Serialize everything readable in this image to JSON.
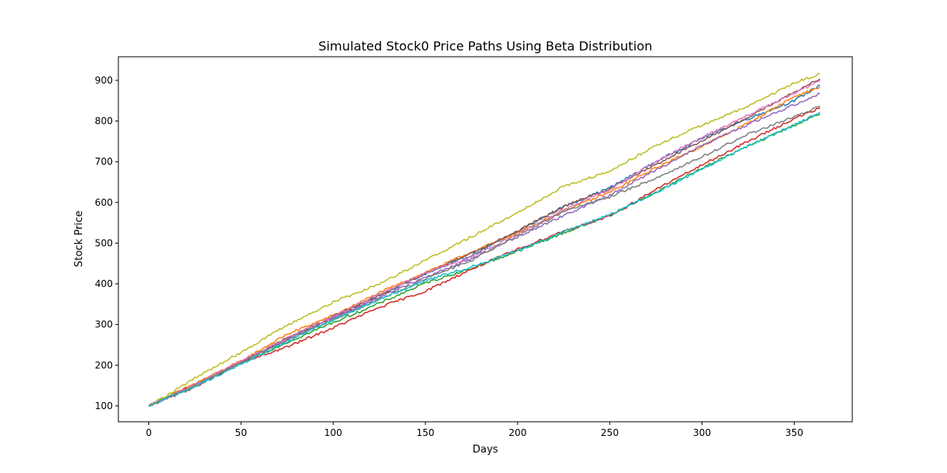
{
  "chart_data": {
    "type": "line",
    "title": "Simulated Stock0 Price Paths Using Beta Distribution",
    "xlabel": "Days",
    "ylabel": "Stock Price",
    "xlim": [
      -16.5,
      381.5
    ],
    "ylim": [
      61,
      958
    ],
    "grid": false,
    "legend": "none",
    "x_ticks": [
      0,
      50,
      100,
      150,
      200,
      250,
      300,
      350
    ],
    "y_ticks": [
      100,
      200,
      300,
      400,
      500,
      600,
      700,
      800,
      900
    ],
    "series": [
      {
        "color": "#1f77b4",
        "x": [
          0,
          25,
          50,
          75,
          100,
          125,
          150,
          175,
          200,
          225,
          250,
          275,
          300,
          325,
          350,
          364
        ],
        "y": [
          100,
          152,
          208,
          266,
          318,
          372,
          424,
          470,
          528,
          590,
          636,
          700,
          758,
          806,
          850,
          888
        ]
      },
      {
        "color": "#ff7f0e",
        "x": [
          0,
          25,
          50,
          75,
          100,
          125,
          150,
          175,
          200,
          225,
          250,
          275,
          300,
          325,
          350,
          364
        ],
        "y": [
          100,
          155,
          210,
          276,
          322,
          378,
          428,
          478,
          525,
          580,
          625,
          685,
          738,
          795,
          860,
          884
        ]
      },
      {
        "color": "#2ca02c",
        "x": [
          0,
          25,
          50,
          75,
          100,
          125,
          150,
          175,
          200,
          225,
          250,
          275,
          300,
          325,
          350,
          364
        ],
        "y": [
          100,
          150,
          205,
          256,
          305,
          352,
          402,
          438,
          480,
          525,
          568,
          625,
          685,
          738,
          790,
          817
        ]
      },
      {
        "color": "#d62728",
        "x": [
          0,
          25,
          50,
          75,
          100,
          125,
          150,
          175,
          200,
          225,
          250,
          275,
          300,
          325,
          350,
          364
        ],
        "y": [
          100,
          150,
          205,
          245,
          292,
          342,
          382,
          436,
          485,
          530,
          566,
          632,
          692,
          750,
          806,
          832
        ]
      },
      {
        "color": "#9467bd",
        "x": [
          0,
          25,
          50,
          75,
          100,
          125,
          150,
          175,
          200,
          225,
          250,
          275,
          300,
          325,
          350,
          364
        ],
        "y": [
          100,
          152,
          208,
          262,
          315,
          368,
          416,
          462,
          516,
          568,
          618,
          680,
          740,
          792,
          840,
          868
        ]
      },
      {
        "color": "#8c564b",
        "x": [
          0,
          25,
          50,
          75,
          100,
          125,
          150,
          175,
          200,
          225,
          250,
          275,
          300,
          325,
          350,
          364
        ],
        "y": [
          100,
          146,
          208,
          266,
          320,
          372,
          426,
          476,
          530,
          590,
          634,
          693,
          752,
          810,
          870,
          904
        ]
      },
      {
        "color": "#e377c2",
        "x": [
          0,
          25,
          50,
          75,
          100,
          125,
          150,
          175,
          200,
          225,
          250,
          275,
          300,
          325,
          350,
          364
        ],
        "y": [
          100,
          152,
          210,
          266,
          320,
          375,
          426,
          466,
          522,
          582,
          632,
          700,
          760,
          815,
          868,
          900
        ]
      },
      {
        "color": "#7f7f7f",
        "x": [
          0,
          25,
          50,
          75,
          100,
          125,
          150,
          175,
          200,
          225,
          250,
          275,
          300,
          325,
          350,
          364
        ],
        "y": [
          100,
          150,
          206,
          262,
          312,
          362,
          412,
          458,
          518,
          578,
          614,
          660,
          712,
          768,
          810,
          836
        ]
      },
      {
        "color": "#bcbd22",
        "x": [
          0,
          25,
          50,
          75,
          100,
          125,
          150,
          175,
          200,
          225,
          250,
          275,
          300,
          325,
          350,
          364
        ],
        "y": [
          100,
          168,
          232,
          298,
          355,
          400,
          458,
          516,
          575,
          640,
          676,
          740,
          790,
          836,
          894,
          916
        ]
      },
      {
        "color": "#17becf",
        "x": [
          0,
          25,
          50,
          75,
          100,
          125,
          150,
          175,
          200,
          225,
          250,
          275,
          300,
          325,
          350,
          364
        ],
        "y": [
          100,
          148,
          202,
          258,
          312,
          362,
          408,
          442,
          482,
          528,
          570,
          624,
          682,
          740,
          790,
          822
        ]
      }
    ]
  }
}
